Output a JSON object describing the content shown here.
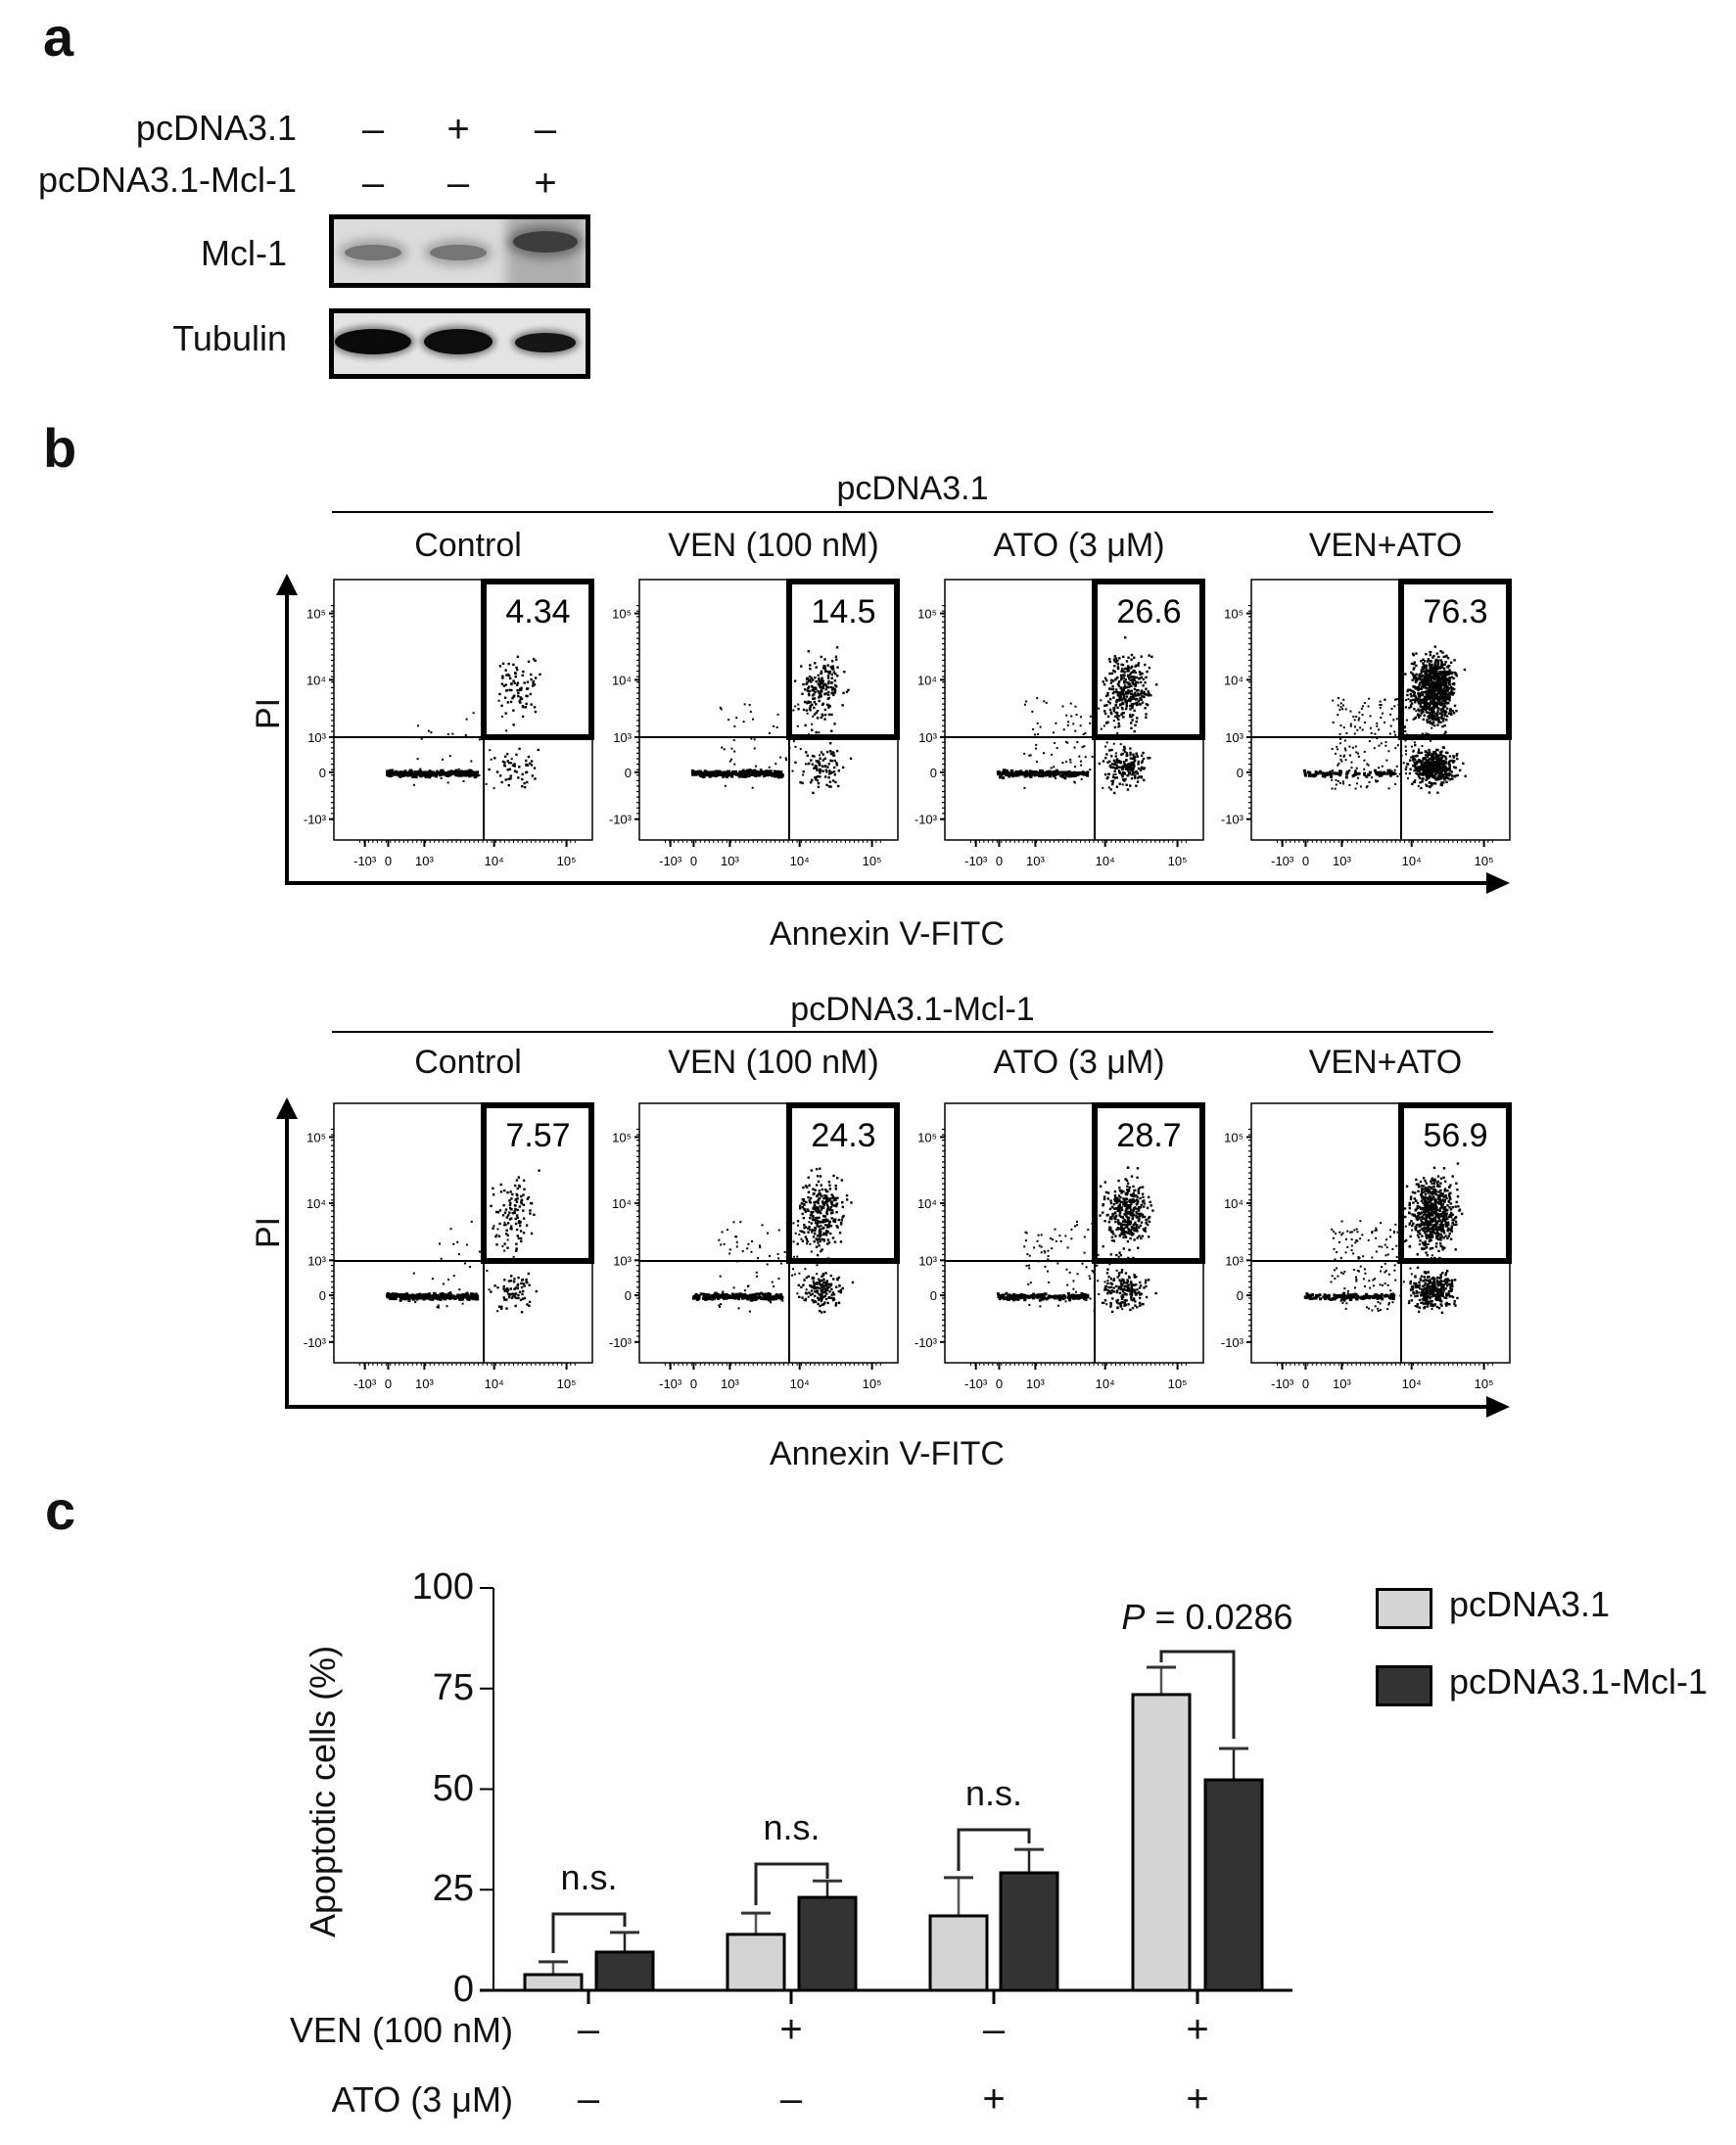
{
  "panel_a": {
    "label": "a",
    "row_labels": [
      "pcDNA3.1",
      "pcDNA3.1-Mcl-1"
    ],
    "lanes": [
      {
        "pcDNA3.1": "–",
        "pcDNA3.1-Mcl-1": "–"
      },
      {
        "pcDNA3.1": "+",
        "pcDNA3.1-Mcl-1": "–"
      },
      {
        "pcDNA3.1": "–",
        "pcDNA3.1-Mcl-1": "+"
      }
    ],
    "row1_signs": [
      "–",
      "+",
      "–"
    ],
    "row2_signs": [
      "–",
      "–",
      "+"
    ],
    "blots": [
      {
        "name": "Mcl-1",
        "band_intensity": [
          0.45,
          0.45,
          0.95
        ]
      },
      {
        "name": "Tubulin",
        "band_intensity": [
          1.0,
          0.95,
          0.8
        ]
      }
    ]
  },
  "panel_b": {
    "label": "b",
    "y_axis_label": "PI",
    "x_axis_label": "Annexin V-FITC",
    "tick_labels_x": [
      "-10³",
      "0",
      "10³",
      "10⁴",
      "10⁵"
    ],
    "tick_labels_y": [
      "10⁵",
      "10⁴",
      "10³",
      "0",
      "-10³"
    ],
    "groups": [
      {
        "title": "pcDNA3.1",
        "conditions": [
          "Control",
          "VEN (100 nM)",
          "ATO (3 μM)",
          "VEN+ATO"
        ],
        "gate_values": [
          "4.34",
          "14.5",
          "26.6",
          "76.3"
        ]
      },
      {
        "title": "pcDNA3.1-Mcl-1",
        "conditions": [
          "Control",
          "VEN (100 nM)",
          "ATO (3 μM)",
          "VEN+ATO"
        ],
        "gate_values": [
          "7.57",
          "24.3",
          "28.7",
          "56.9"
        ]
      }
    ]
  },
  "panel_c": {
    "label": "c",
    "y_axis_label": "Apoptotic cells (%)",
    "y_ticks": [
      "100",
      "75",
      "50",
      "25",
      "0"
    ],
    "legend": [
      {
        "label": "pcDNA3.1",
        "color": "#d4d4d4"
      },
      {
        "label": "pcDNA3.1-Mcl-1",
        "color": "#333333"
      }
    ],
    "treatment_rows": [
      {
        "label": "VEN (100 nM)",
        "signs": [
          "–",
          "+",
          "–",
          "+"
        ]
      },
      {
        "label": "ATO (3 μM)",
        "signs": [
          "–",
          "–",
          "+",
          "+"
        ]
      }
    ],
    "annotations": [
      "n.s.",
      "n.s.",
      "n.s.",
      "P = 0.0286"
    ],
    "p_italic": "P",
    "p_rest": " = 0.0286"
  },
  "chart_data": {
    "type": "bar",
    "title": "",
    "xlabel": "",
    "ylabel": "Apoptotic cells (%)",
    "ylim": [
      0,
      100
    ],
    "y_ticks": [
      0,
      25,
      50,
      75,
      100
    ],
    "categories": [
      "VEN−/ATO−",
      "VEN+/ATO−",
      "VEN−/ATO+",
      "VEN+/ATO+"
    ],
    "series": [
      {
        "name": "pcDNA3.1",
        "color": "#d4d4d4",
        "values": [
          3.9,
          13.9,
          18.5,
          73.5
        ],
        "error_upper": [
          7.1,
          19.2,
          28.0,
          80.3
        ]
      },
      {
        "name": "pcDNA3.1-Mcl-1",
        "color": "#333333",
        "values": [
          9.5,
          23.1,
          29.2,
          52.3
        ],
        "error_upper": [
          14.4,
          27.2,
          35.0,
          60.1
        ]
      }
    ],
    "annotations": [
      {
        "group": 0,
        "text": "n.s."
      },
      {
        "group": 1,
        "text": "n.s."
      },
      {
        "group": 2,
        "text": "n.s."
      },
      {
        "group": 3,
        "text": "P = 0.0286"
      }
    ],
    "legend_position": "right",
    "grid": false
  }
}
